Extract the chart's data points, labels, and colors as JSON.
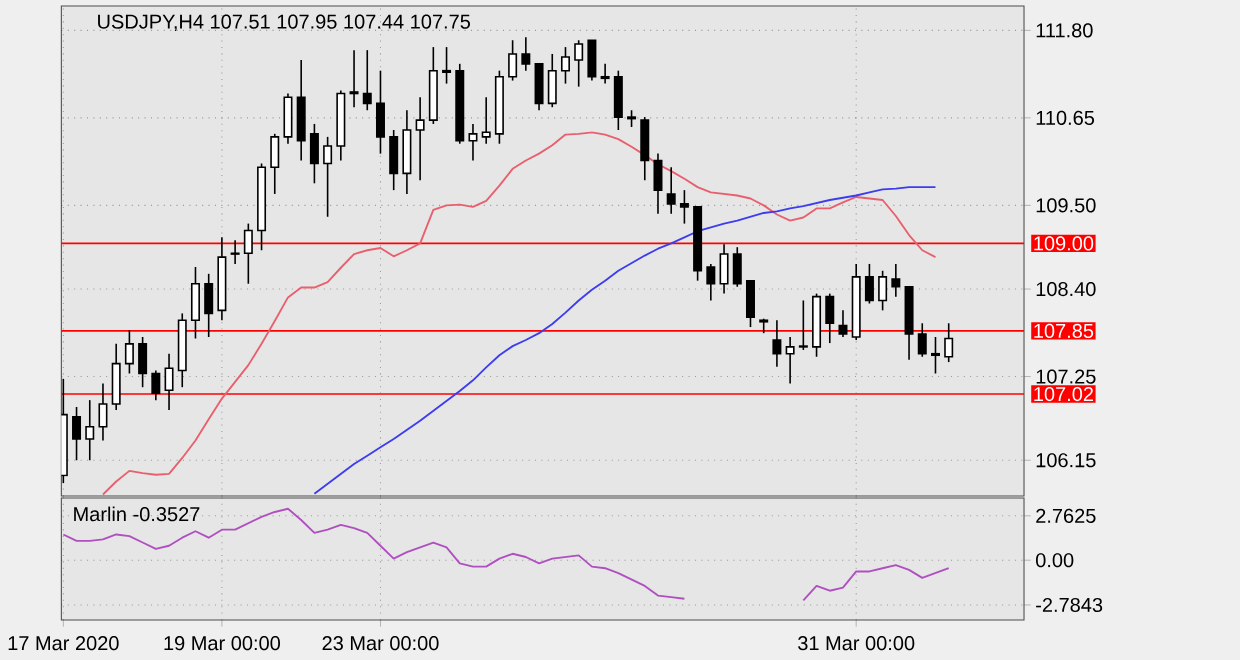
{
  "chart_data": [
    {
      "type": "candlestick",
      "title": "USDJPY,H4  107.51 107.95 107.44 107.75",
      "categories": [
        null,
        null,
        null,
        null,
        null,
        null,
        null,
        null,
        null,
        null,
        null,
        null,
        null,
        null,
        null,
        null,
        null,
        null,
        null,
        null,
        null,
        null,
        null,
        null,
        null,
        null,
        null,
        null,
        null,
        null,
        null,
        null,
        null,
        null,
        null,
        null,
        null,
        null,
        null,
        null,
        null,
        null,
        null,
        null,
        null,
        null,
        null,
        null,
        null,
        null,
        null,
        null,
        null,
        null,
        null,
        null,
        null,
        null,
        null,
        null,
        null,
        null,
        null,
        null,
        null,
        null,
        null,
        null
      ],
      "ohlc": [
        [
          105.95,
          107.22,
          105.85,
          106.75
        ],
        [
          106.72,
          106.85,
          106.15,
          106.43
        ],
        [
          106.43,
          106.94,
          106.15,
          106.59
        ],
        [
          106.59,
          107.16,
          106.41,
          106.89
        ],
        [
          106.89,
          107.68,
          106.81,
          107.42
        ],
        [
          107.42,
          107.86,
          107.29,
          107.68
        ],
        [
          107.68,
          107.77,
          107.11,
          107.29
        ],
        [
          107.29,
          107.33,
          106.94,
          107.03
        ],
        [
          107.07,
          107.55,
          106.81,
          107.36
        ],
        [
          107.33,
          108.08,
          107.11,
          107.99
        ],
        [
          107.99,
          108.69,
          107.75,
          108.47
        ],
        [
          108.47,
          108.6,
          107.77,
          108.08
        ],
        [
          108.12,
          109.08,
          107.99,
          108.82
        ],
        [
          108.86,
          109.04,
          108.73,
          108.87
        ],
        [
          108.87,
          109.26,
          108.47,
          109.17
        ],
        [
          109.17,
          110.05,
          108.91,
          110.0
        ],
        [
          110.0,
          110.44,
          109.65,
          110.4
        ],
        [
          110.4,
          110.97,
          110.31,
          110.92
        ],
        [
          110.92,
          111.41,
          110.09,
          110.35
        ],
        [
          110.44,
          110.57,
          109.79,
          110.05
        ],
        [
          110.05,
          110.4,
          109.35,
          110.28
        ],
        [
          110.28,
          111.01,
          110.09,
          110.97
        ],
        [
          110.97,
          111.54,
          110.79,
          110.99
        ],
        [
          110.97,
          111.54,
          110.75,
          110.84
        ],
        [
          110.84,
          111.27,
          110.18,
          110.4
        ],
        [
          110.4,
          110.49,
          109.7,
          109.92
        ],
        [
          109.92,
          110.75,
          109.65,
          110.49
        ],
        [
          110.49,
          110.92,
          109.83,
          110.62
        ],
        [
          110.62,
          111.58,
          110.57,
          111.27
        ],
        [
          111.25,
          111.58,
          111.1,
          111.27
        ],
        [
          111.27,
          111.36,
          110.31,
          110.35
        ],
        [
          110.35,
          110.57,
          110.09,
          110.44
        ],
        [
          110.4,
          110.92,
          110.31,
          110.46
        ],
        [
          110.44,
          111.27,
          110.31,
          111.19
        ],
        [
          111.19,
          111.67,
          111.14,
          111.49
        ],
        [
          111.49,
          111.71,
          111.27,
          111.36
        ],
        [
          111.36,
          111.36,
          110.75,
          110.84
        ],
        [
          110.84,
          111.49,
          110.79,
          111.27
        ],
        [
          111.27,
          111.58,
          111.1,
          111.45
        ],
        [
          111.41,
          111.67,
          111.06,
          111.62
        ],
        [
          111.67,
          111.67,
          111.14,
          111.19
        ],
        [
          111.19,
          111.36,
          111.1,
          111.17
        ],
        [
          111.19,
          111.27,
          110.49,
          110.66
        ],
        [
          110.66,
          110.75,
          110.53,
          110.64
        ],
        [
          110.62,
          110.66,
          109.83,
          110.09
        ],
        [
          110.09,
          110.18,
          109.39,
          109.7
        ],
        [
          109.65,
          110.0,
          109.39,
          109.52
        ],
        [
          109.52,
          109.7,
          109.26,
          109.48
        ],
        [
          109.48,
          109.48,
          108.51,
          108.64
        ],
        [
          108.69,
          108.73,
          108.25,
          108.47
        ],
        [
          108.47,
          108.99,
          108.34,
          108.86
        ],
        [
          108.86,
          108.95,
          108.43,
          108.47
        ],
        [
          108.51,
          108.51,
          107.9,
          108.03
        ],
        [
          107.99,
          108.01,
          107.82,
          107.97
        ],
        [
          107.73,
          107.99,
          107.38,
          107.55
        ],
        [
          107.55,
          107.77,
          107.16,
          107.64
        ],
        [
          107.64,
          108.25,
          107.6,
          107.65
        ],
        [
          107.64,
          108.34,
          107.51,
          108.3
        ],
        [
          108.3,
          108.34,
          107.69,
          107.95
        ],
        [
          107.92,
          108.12,
          107.77,
          107.81
        ],
        [
          107.77,
          108.73,
          107.73,
          108.56
        ],
        [
          108.56,
          108.73,
          108.21,
          108.25
        ],
        [
          108.25,
          108.64,
          108.12,
          108.56
        ],
        [
          108.53,
          108.73,
          108.3,
          108.43
        ],
        [
          108.43,
          108.43,
          107.47,
          107.81
        ],
        [
          107.81,
          107.95,
          107.51,
          107.55
        ],
        [
          107.55,
          107.77,
          107.29,
          107.53
        ],
        [
          107.51,
          107.95,
          107.44,
          107.75
        ]
      ],
      "series": [
        {
          "type": "line",
          "color": "#e8606e",
          "values": [
            null,
            null,
            null,
            105.7,
            105.87,
            106.01,
            105.98,
            105.96,
            105.97,
            106.18,
            106.41,
            106.69,
            106.96,
            107.18,
            107.4,
            107.68,
            107.98,
            108.29,
            108.42,
            108.42,
            108.49,
            108.68,
            108.86,
            108.91,
            108.94,
            108.83,
            108.91,
            109.0,
            109.44,
            109.5,
            109.51,
            109.48,
            109.56,
            109.76,
            109.98,
            110.09,
            110.18,
            110.29,
            110.43,
            110.44,
            110.46,
            110.43,
            110.37,
            110.27,
            110.16,
            110.04,
            109.95,
            109.85,
            109.74,
            109.67,
            109.65,
            109.63,
            109.59,
            109.5,
            109.38,
            109.3,
            109.34,
            109.46,
            109.46,
            109.54,
            109.61,
            109.59,
            109.57,
            109.36,
            109.11,
            108.91,
            108.82,
            null
          ]
        },
        {
          "type": "line",
          "color": "#3c3cf0",
          "values": [
            null,
            null,
            null,
            null,
            null,
            null,
            null,
            null,
            null,
            null,
            null,
            null,
            null,
            null,
            null,
            null,
            null,
            null,
            null,
            105.71,
            105.84,
            105.97,
            106.1,
            106.21,
            106.32,
            106.43,
            106.55,
            106.67,
            106.8,
            106.93,
            107.06,
            107.2,
            107.37,
            107.53,
            107.65,
            107.73,
            107.82,
            107.94,
            108.09,
            108.25,
            108.39,
            108.51,
            108.64,
            108.74,
            108.84,
            108.93,
            109.0,
            109.08,
            109.16,
            109.21,
            109.26,
            109.3,
            109.35,
            109.4,
            109.42,
            109.46,
            109.49,
            109.53,
            109.57,
            109.6,
            109.63,
            109.67,
            109.71,
            109.72,
            109.74,
            109.74,
            109.74,
            null
          ]
        }
      ],
      "ref_lines": [
        {
          "axis": "y",
          "value": 109.0,
          "label": "109.00",
          "color": "#ff0000"
        },
        {
          "axis": "y",
          "value": 107.85,
          "label": "107.85",
          "color": "#ff0000"
        },
        {
          "axis": "y",
          "value": 107.02,
          "label": "107.02",
          "color": "#ff0000"
        }
      ],
      "ylim": [
        105.68,
        112.12
      ],
      "yticks": [
        {
          "value": 111.8,
          "label": "111.80"
        },
        110.65,
        {
          "value": 109.5,
          "label": "109.50"
        },
        {
          "value": 108.4,
          "label": "108.40"
        },
        107.25,
        106.15
      ],
      "grid": true,
      "tick_labels": "y"
    },
    {
      "type": "line",
      "title": "Marlin -0.3527",
      "color": "#b050c0",
      "categories": [
        "17 Mar 2020",
        null,
        null,
        null,
        null,
        null,
        null,
        null,
        null,
        null,
        null,
        null,
        "19 Mar 00:00",
        null,
        null,
        null,
        null,
        null,
        null,
        null,
        null,
        null,
        null,
        null,
        "23 Mar 00:00",
        null,
        null,
        null,
        null,
        null,
        null,
        null,
        null,
        null,
        null,
        null,
        null,
        null,
        null,
        null,
        null,
        null,
        null,
        null,
        null,
        null,
        null,
        null,
        null,
        null,
        null,
        null,
        null,
        null,
        null,
        null,
        null,
        null,
        null,
        null,
        "31 Mar 00:00",
        null,
        null,
        null,
        null,
        null,
        null,
        null
      ],
      "values": [
        1.6,
        1.2,
        1.2,
        1.3,
        1.6,
        1.5,
        1.1,
        0.7,
        0.9,
        1.4,
        1.8,
        1.4,
        1.9,
        1.9,
        2.3,
        2.7,
        3.0,
        3.2,
        2.5,
        1.7,
        1.9,
        2.2,
        2.0,
        1.7,
        0.9,
        0.1,
        0.5,
        0.8,
        1.1,
        0.8,
        -0.2,
        -0.4,
        -0.4,
        0.1,
        0.4,
        0.2,
        -0.2,
        0.1,
        0.2,
        0.3,
        -0.4,
        -0.5,
        -0.8,
        -1.2,
        -1.6,
        -2.2,
        -2.3,
        -2.4,
        null,
        null,
        null,
        null,
        null,
        null,
        null,
        null,
        -2.5,
        -1.6,
        -1.9,
        -1.7,
        -0.7,
        -0.7,
        -0.5,
        -0.3,
        -0.6,
        -1.1,
        -0.8,
        -0.5
      ],
      "ylim": [
        -3.72,
        3.87
      ],
      "yticks": [
        2.7625,
        {
          "value": 0,
          "label": "0.00"
        },
        -2.7843
      ],
      "grid": true
    }
  ]
}
